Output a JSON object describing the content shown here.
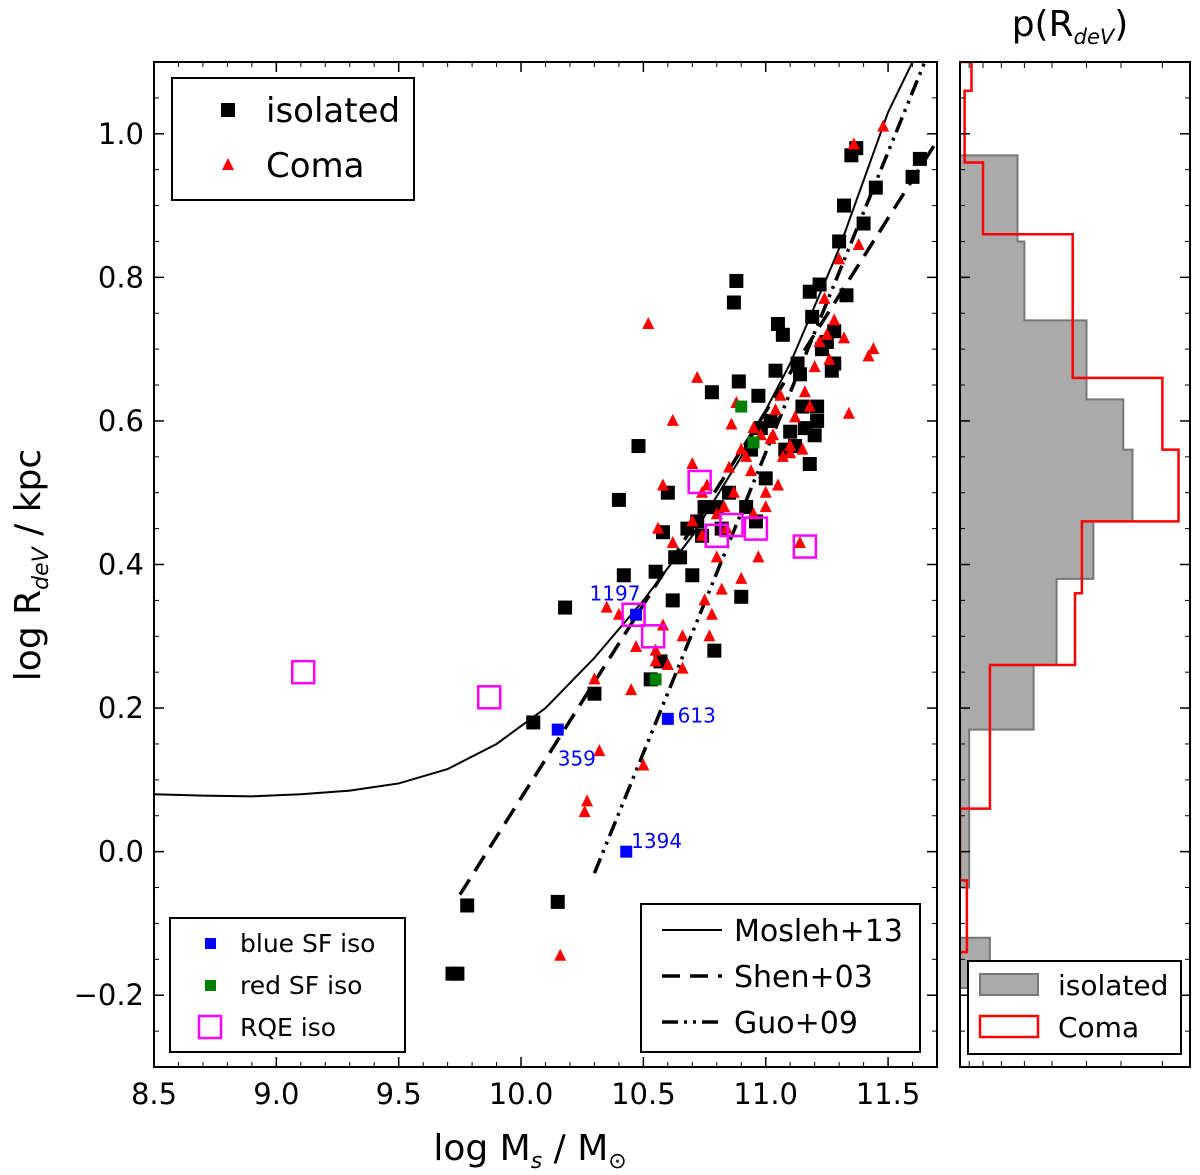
{
  "chart_data": [
    {
      "type": "scatter",
      "xlabel_main": "log M",
      "xlabel_sub": "s",
      "xlabel_rest": " / M",
      "xlabel_sun": "⊙",
      "ylabel_main": "log R",
      "ylabel_sub": "deV",
      "ylabel_rest": " / kpc",
      "xlim": [
        8.5,
        11.7
      ],
      "ylim": [
        -0.3,
        1.1
      ],
      "xticks": [
        "8.5",
        "9.0",
        "9.5",
        "10.0",
        "10.5",
        "11.0",
        "11.5"
      ],
      "yticks": [
        "−0.2",
        "0.0",
        "0.2",
        "0.4",
        "0.6",
        "0.8",
        "1.0"
      ],
      "series": [
        {
          "name": "isolated",
          "marker": "square",
          "color": "#000000",
          "points": [
            [
              9.72,
              -0.17
            ],
            [
              9.74,
              -0.17
            ],
            [
              9.78,
              -0.075
            ],
            [
              10.05,
              0.18
            ],
            [
              10.15,
              -0.07
            ],
            [
              10.18,
              0.34
            ],
            [
              10.3,
              0.22
            ],
            [
              10.4,
              0.49
            ],
            [
              10.42,
              0.385
            ],
            [
              10.48,
              0.565
            ],
            [
              10.53,
              0.24
            ],
            [
              10.55,
              0.39
            ],
            [
              10.57,
              0.265
            ],
            [
              10.58,
              0.445
            ],
            [
              10.6,
              0.5
            ],
            [
              10.62,
              0.35
            ],
            [
              10.63,
              0.41
            ],
            [
              10.65,
              0.41
            ],
            [
              10.68,
              0.45
            ],
            [
              10.7,
              0.385
            ],
            [
              10.72,
              0.46
            ],
            [
              10.74,
              0.44
            ],
            [
              10.75,
              0.48
            ],
            [
              10.78,
              0.64
            ],
            [
              10.79,
              0.28
            ],
            [
              10.8,
              0.48
            ],
            [
              10.82,
              0.45
            ],
            [
              10.85,
              0.5
            ],
            [
              10.87,
              0.765
            ],
            [
              10.88,
              0.795
            ],
            [
              10.89,
              0.655
            ],
            [
              10.9,
              0.355
            ],
            [
              10.92,
              0.48
            ],
            [
              10.94,
              0.56
            ],
            [
              10.96,
              0.46
            ],
            [
              10.97,
              0.635
            ],
            [
              10.98,
              0.59
            ],
            [
              11.0,
              0.52
            ],
            [
              11.02,
              0.6
            ],
            [
              11.04,
              0.67
            ],
            [
              11.05,
              0.735
            ],
            [
              11.07,
              0.72
            ],
            [
              11.08,
              0.56
            ],
            [
              11.1,
              0.585
            ],
            [
              11.12,
              0.565
            ],
            [
              11.13,
              0.68
            ],
            [
              11.14,
              0.665
            ],
            [
              11.15,
              0.62
            ],
            [
              11.16,
              0.59
            ],
            [
              11.18,
              0.78
            ],
            [
              11.19,
              0.745
            ],
            [
              11.2,
              0.58
            ],
            [
              11.21,
              0.62
            ],
            [
              11.22,
              0.79
            ],
            [
              11.23,
              0.7
            ],
            [
              11.25,
              0.71
            ],
            [
              11.27,
              0.67
            ],
            [
              11.28,
              0.68
            ],
            [
              11.3,
              0.85
            ],
            [
              11.32,
              0.9
            ],
            [
              11.35,
              0.97
            ],
            [
              11.37,
              0.98
            ],
            [
              11.4,
              0.875
            ],
            [
              11.45,
              0.925
            ],
            [
              11.6,
              0.94
            ],
            [
              11.63,
              0.965
            ],
            [
              11.18,
              0.54
            ],
            [
              11.21,
              0.6
            ],
            [
              11.33,
              0.775
            ],
            [
              11.28,
              0.725
            ]
          ]
        },
        {
          "name": "Coma",
          "marker": "triangle",
          "color": "#ff0000",
          "points": [
            [
              10.16,
              -0.145
            ],
            [
              10.26,
              0.055
            ],
            [
              10.27,
              0.07
            ],
            [
              10.3,
              0.24
            ],
            [
              10.32,
              0.14
            ],
            [
              10.35,
              0.34
            ],
            [
              10.4,
              0.33
            ],
            [
              10.45,
              0.225
            ],
            [
              10.47,
              0.285
            ],
            [
              10.5,
              0.12
            ],
            [
              10.52,
              0.735
            ],
            [
              10.55,
              0.28
            ],
            [
              10.56,
              0.45
            ],
            [
              10.58,
              0.51
            ],
            [
              10.6,
              0.26
            ],
            [
              10.62,
              0.6
            ],
            [
              10.66,
              0.3
            ],
            [
              10.7,
              0.54
            ],
            [
              10.72,
              0.66
            ],
            [
              10.74,
              0.44
            ],
            [
              10.75,
              0.35
            ],
            [
              10.76,
              0.51
            ],
            [
              10.78,
              0.33
            ],
            [
              10.8,
              0.47
            ],
            [
              10.82,
              0.365
            ],
            [
              10.84,
              0.45
            ],
            [
              10.85,
              0.535
            ],
            [
              10.87,
              0.5
            ],
            [
              10.88,
              0.625
            ],
            [
              10.9,
              0.56
            ],
            [
              10.92,
              0.55
            ],
            [
              10.94,
              0.53
            ],
            [
              10.95,
              0.59
            ],
            [
              10.97,
              0.41
            ],
            [
              10.98,
              0.58
            ],
            [
              11.0,
              0.5
            ],
            [
              11.02,
              0.575
            ],
            [
              11.04,
              0.615
            ],
            [
              11.05,
              0.51
            ],
            [
              11.07,
              0.55
            ],
            [
              11.1,
              0.565
            ],
            [
              11.12,
              0.605
            ],
            [
              11.14,
              0.43
            ],
            [
              11.16,
              0.64
            ],
            [
              11.18,
              0.62
            ],
            [
              11.2,
              0.675
            ],
            [
              11.22,
              0.71
            ],
            [
              11.24,
              0.77
            ],
            [
              11.26,
              0.685
            ],
            [
              11.28,
              0.74
            ],
            [
              11.3,
              0.825
            ],
            [
              11.32,
              0.715
            ],
            [
              11.34,
              0.61
            ],
            [
              11.36,
              0.985
            ],
            [
              11.38,
              0.845
            ],
            [
              11.42,
              0.69
            ],
            [
              11.44,
              0.7
            ],
            [
              11.48,
              1.01
            ],
            [
              10.55,
              0.265
            ],
            [
              10.58,
              0.315
            ],
            [
              10.62,
              0.43
            ],
            [
              10.66,
              0.255
            ],
            [
              10.7,
              0.46
            ],
            [
              10.74,
              0.5
            ],
            [
              10.77,
              0.3
            ],
            [
              10.8,
              0.41
            ],
            [
              10.83,
              0.48
            ],
            [
              10.86,
              0.595
            ],
            [
              10.9,
              0.38
            ],
            [
              10.95,
              0.47
            ],
            [
              11.0,
              0.48
            ],
            [
              11.03,
              0.58
            ],
            [
              11.06,
              0.635
            ],
            [
              11.1,
              0.555
            ],
            [
              11.15,
              0.56
            ],
            [
              11.25,
              0.72
            ]
          ]
        },
        {
          "name": "blue SF iso",
          "marker": "square-small",
          "color": "#0000ff",
          "points": [
            [
              10.15,
              0.17
            ],
            [
              10.43,
              0.0
            ],
            [
              10.47,
              0.33
            ],
            [
              10.6,
              0.185
            ]
          ]
        },
        {
          "name": "red SF iso",
          "marker": "square-small",
          "color": "#008000",
          "points": [
            [
              10.55,
              0.24
            ],
            [
              10.9,
              0.62
            ],
            [
              10.95,
              0.57
            ]
          ]
        },
        {
          "name": "RQE iso",
          "marker": "open-square",
          "color": "#ff00ff",
          "points": [
            [
              9.11,
              0.25
            ],
            [
              9.87,
              0.215
            ],
            [
              10.46,
              0.33
            ],
            [
              10.54,
              0.3
            ],
            [
              10.73,
              0.515
            ],
            [
              10.8,
              0.44
            ],
            [
              10.96,
              0.45
            ],
            [
              11.16,
              0.425
            ],
            [
              10.86,
              0.455
            ]
          ]
        }
      ],
      "curves": [
        {
          "name": "Mosleh+13",
          "style": "solid",
          "x": [
            8.5,
            8.7,
            8.9,
            9.1,
            9.3,
            9.5,
            9.7,
            9.9,
            10.1,
            10.3,
            10.5,
            10.7,
            10.9,
            11.1,
            11.3,
            11.5,
            11.6
          ],
          "y": [
            0.08,
            0.078,
            0.077,
            0.08,
            0.085,
            0.095,
            0.115,
            0.15,
            0.2,
            0.27,
            0.35,
            0.44,
            0.55,
            0.68,
            0.84,
            1.03,
            1.1
          ]
        },
        {
          "name": "Shen+03",
          "style": "dashed",
          "x": [
            9.75,
            11.7
          ],
          "y": [
            -0.06,
            0.99
          ]
        },
        {
          "name": "Guo+09",
          "style": "dashdotdot",
          "x": [
            10.3,
            11.65
          ],
          "y": [
            -0.03,
            1.1
          ]
        }
      ],
      "annotations": [
        {
          "text": "1197",
          "x": 10.28,
          "y": 0.35
        },
        {
          "text": "359",
          "x": 10.15,
          "y": 0.12
        },
        {
          "text": "613",
          "x": 10.64,
          "y": 0.18
        },
        {
          "text": "1394",
          "x": 10.45,
          "y": 0.005
        }
      ],
      "legend_top": {
        "placement": "top-left",
        "entries": [
          "isolated",
          "Coma"
        ]
      },
      "legend_bottom_left": {
        "placement": "lower-left",
        "entries": [
          "blue SF iso",
          "red SF iso",
          "RQE iso"
        ]
      },
      "legend_bottom_right": {
        "placement": "lower-right",
        "entries": [
          "Mosleh+13",
          "Shen+03",
          "Guo+09"
        ]
      }
    },
    {
      "type": "histogram",
      "title_main": "p(R",
      "title_sub": "deV",
      "title_rest": ")",
      "ylim": [
        -0.3,
        1.1
      ],
      "xlim": [
        0,
        1
      ],
      "series": [
        {
          "name": "isolated",
          "style": "filled",
          "color": "#999999",
          "bin_edges": [
            -0.23,
            -0.19,
            -0.12,
            -0.05,
            0.17,
            0.26,
            0.38,
            0.46,
            0.56,
            0.63,
            0.74,
            0.85,
            0.97
          ],
          "values": [
            0,
            0.13,
            0,
            0.04,
            0.32,
            0.42,
            0.58,
            0.75,
            0.71,
            0.55,
            0.28,
            0.25
          ]
        },
        {
          "name": "Coma",
          "style": "step",
          "color": "#ff0000",
          "bin_edges": [
            -0.14,
            -0.04,
            0.06,
            0.26,
            0.36,
            0.46,
            0.56,
            0.66,
            0.86,
            0.96,
            1.06,
            1.1
          ],
          "values": [
            0.03,
            0,
            0.13,
            0.5,
            0.53,
            0.95,
            0.88,
            0.49,
            0.1,
            0.02,
            0.05
          ]
        }
      ],
      "legend": {
        "placement": "lower-center",
        "entries": [
          "isolated",
          "Coma"
        ]
      }
    }
  ]
}
